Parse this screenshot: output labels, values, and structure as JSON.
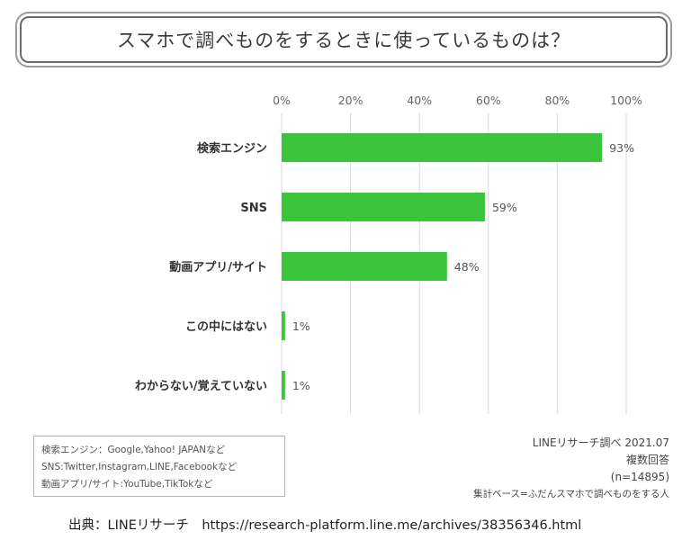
{
  "title": "スマホで調べものをするときに使っているものは？",
  "chart_data": {
    "type": "bar",
    "orientation": "horizontal",
    "categories": [
      "検索エンジン",
      "SNS",
      "動画アプリ/サイト",
      "この中にはない",
      "わからない/覚えていない"
    ],
    "values": [
      93,
      59,
      48,
      1,
      1
    ],
    "value_labels": [
      "93%",
      "59%",
      "48%",
      "1%",
      "1%"
    ],
    "xlim": [
      0,
      100
    ],
    "x_ticks": [
      "0%",
      "20%",
      "40%",
      "60%",
      "80%",
      "100%"
    ],
    "grid": true,
    "bar_color": "#3cc43c"
  },
  "notes": [
    "検索エンジン：Google,Yahoo! JAPANなど",
    "SNS:Twitter,Instagram,LINE,Facebookなど",
    "動画アプリ/サイト:YouTube,TikTokなど"
  ],
  "meta": {
    "survey": "LINEリサーチ調べ 2021.07",
    "answer_type": "複数回答",
    "sample": "(n=14895)",
    "base": "集計ベース=ふだんスマホで調べものをする人"
  },
  "source": "出典：LINEリサーチ　https://research-platform.line.me/archives/38356346.html"
}
